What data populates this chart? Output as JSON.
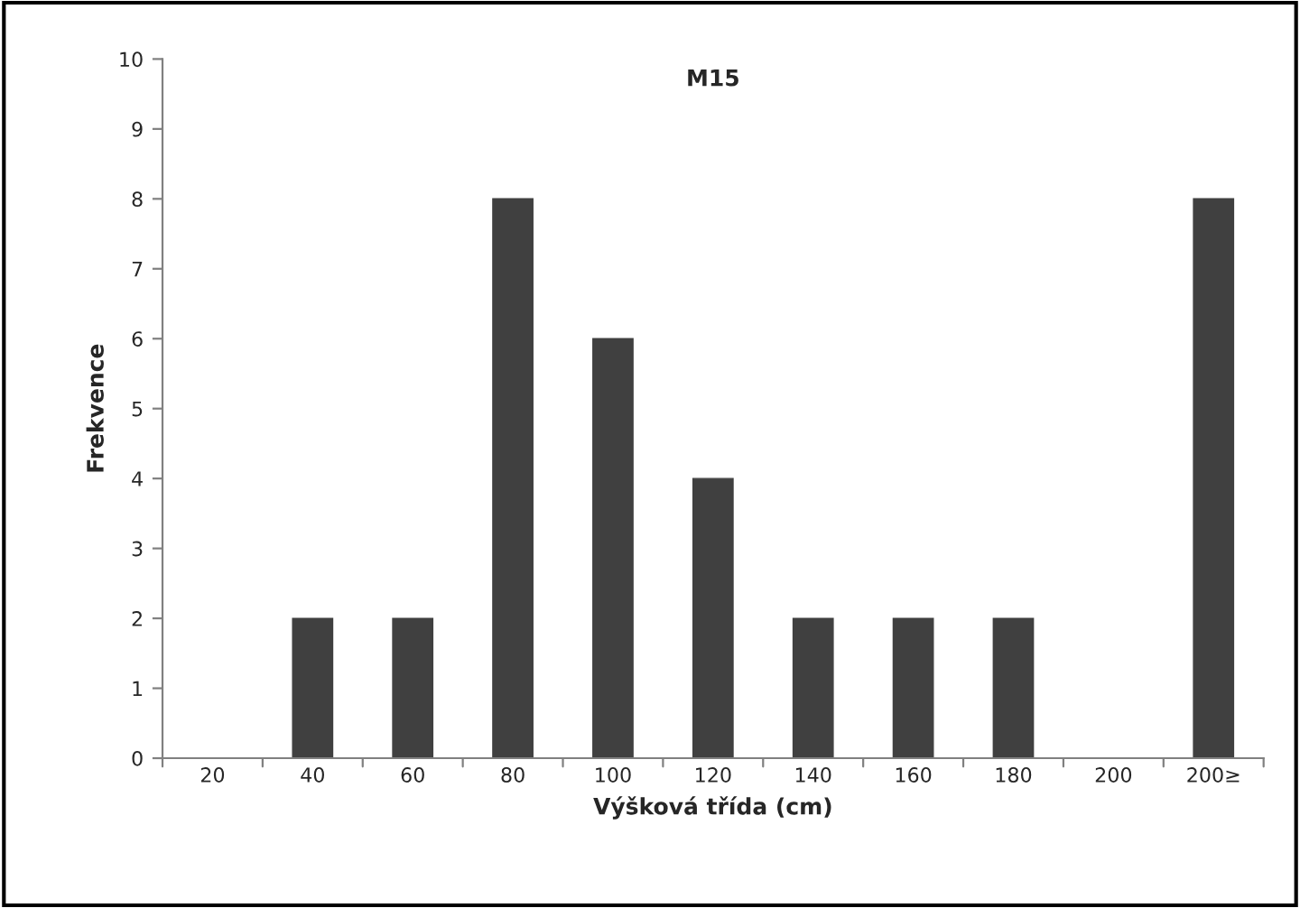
{
  "chart_data": {
    "type": "bar",
    "title": "M15",
    "xlabel": "Výšková třída (cm)",
    "ylabel": "Frekvence",
    "categories": [
      "20",
      "40",
      "60",
      "80",
      "100",
      "120",
      "140",
      "160",
      "180",
      "200",
      "200≥"
    ],
    "values": [
      0,
      2,
      2,
      8,
      6,
      4,
      2,
      2,
      2,
      0,
      8
    ],
    "color": "#404040",
    "ylim": [
      0,
      10
    ],
    "yticks": [
      0,
      1,
      2,
      3,
      4,
      5,
      6,
      7,
      8,
      9,
      10
    ],
    "grid": false,
    "legend": false
  }
}
